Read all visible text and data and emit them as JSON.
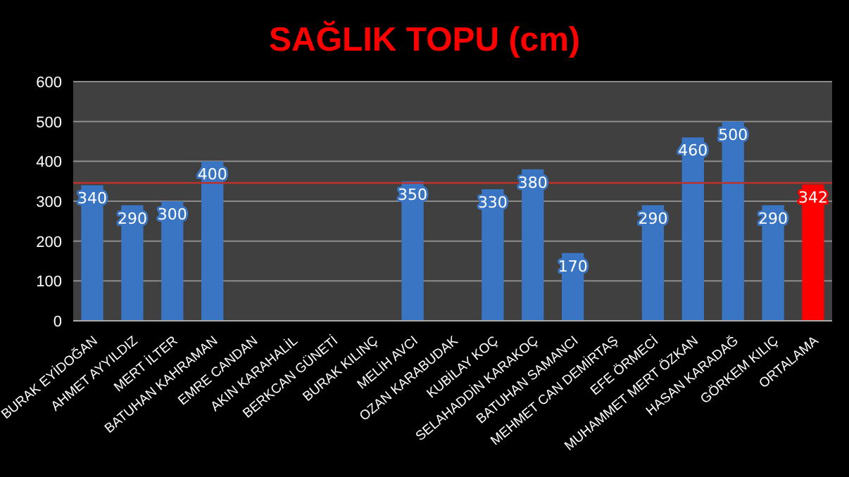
{
  "chart_data": {
    "type": "bar",
    "title": "SAĞLIK TOPU (cm)",
    "categories": [
      "BURAK EYİDOĞAN",
      "AHMET AYYILDIZ",
      "MERT İLTER",
      "BATUHAN KAHRAMAN",
      "EMRE CANDAN",
      "AKIN KARAHALİL",
      "BERKCAN GÜNETİ",
      "BURAK KILINÇ",
      "MELİH AVCI",
      "OZAN KARABUDAK",
      "KUBİLAY KOÇ",
      "SELAHADDİN KARAKOÇ",
      "BATUHAN SAMANCI",
      "MEHMET CAN DEMİRTAŞ",
      "EFE ÖRMECİ",
      "MUHAMMET MERT ÖZKAN",
      "HASAN KARADAĞ",
      "GÖRKEM KILIÇ",
      "ORTALAMA"
    ],
    "values": [
      340,
      290,
      300,
      400,
      null,
      null,
      null,
      null,
      350,
      null,
      330,
      380,
      170,
      null,
      290,
      460,
      500,
      290,
      342
    ],
    "colors": [
      "#3a75c4",
      "#3a75c4",
      "#3a75c4",
      "#3a75c4",
      null,
      null,
      null,
      null,
      "#3a75c4",
      null,
      "#3a75c4",
      "#3a75c4",
      "#3a75c4",
      null,
      "#3a75c4",
      "#3a75c4",
      "#3a75c4",
      "#3a75c4",
      "#ff0000"
    ],
    "ylim": [
      0,
      600
    ],
    "yticks": [
      0,
      100,
      200,
      300,
      400,
      500,
      600
    ],
    "grid": "y",
    "data_labels": true,
    "ref_lines": [
      {
        "axis": "y",
        "value": 346,
        "color": "#c0302a"
      }
    ]
  }
}
